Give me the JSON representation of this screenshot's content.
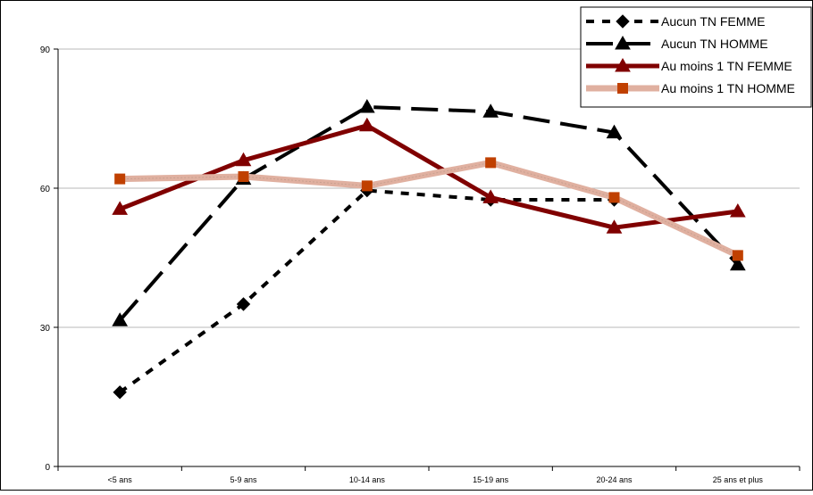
{
  "chart_data": {
    "type": "line",
    "title": "",
    "xlabel": "",
    "ylabel": "",
    "categories": [
      "<5 ans",
      "5-9 ans",
      "10-14 ans",
      "15-19 ans",
      "20-24 ans",
      "25 ans et plus"
    ],
    "ylim": [
      0,
      90
    ],
    "yticks": [
      0,
      30,
      60,
      90
    ],
    "grid": true,
    "legend_position": "top-right",
    "series": [
      {
        "name": "Aucun TN FEMME",
        "values": [
          16,
          35,
          59.5,
          57.5,
          57.5,
          null
        ],
        "color": "#000000",
        "dash": "dotted-short",
        "marker": "diamond"
      },
      {
        "name": "Aucun TN HOMME",
        "values": [
          31.5,
          62,
          77.5,
          76.5,
          72,
          43.5
        ],
        "color": "#000000",
        "dash": "long-dash",
        "marker": "triangle"
      },
      {
        "name": "Au moins 1 TN FEMME",
        "values": [
          55.5,
          66,
          73.5,
          58,
          51.5,
          55
        ],
        "color": "#800000",
        "dash": "solid",
        "marker": "triangle"
      },
      {
        "name": "Au moins 1 TN HOMME",
        "values": [
          62,
          62.5,
          60.5,
          65.5,
          58,
          45.5
        ],
        "color": "#e0b0a0",
        "dash": "solid",
        "marker": "square",
        "marker_color": "#c04000"
      }
    ]
  }
}
